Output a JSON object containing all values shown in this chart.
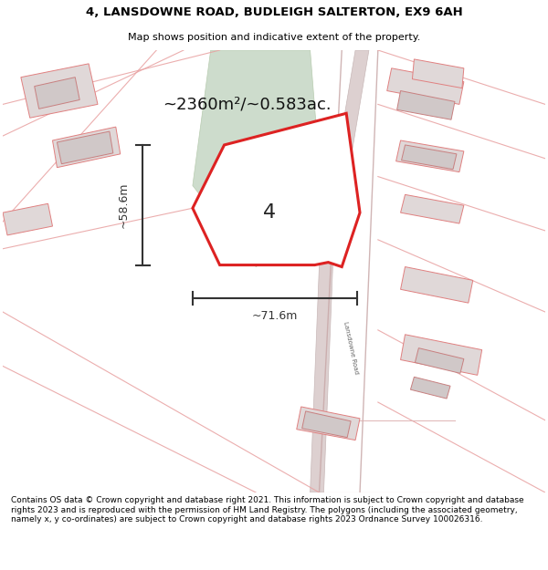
{
  "title_line1": "4, LANSDOWNE ROAD, BUDLEIGH SALTERTON, EX9 6AH",
  "title_line2": "Map shows position and indicative extent of the property.",
  "area_text": "~2360m²/~0.583ac.",
  "label_4": "4",
  "dim_height": "~58.6m",
  "dim_width": "~71.6m",
  "road_label": "Lansdowne Road",
  "footer_text": "Contains OS data © Crown copyright and database right 2021. This information is subject to Crown copyright and database rights 2023 and is reproduced with the permission of HM Land Registry. The polygons (including the associated geometry, namely x, y co-ordinates) are subject to Crown copyright and database rights 2023 Ordnance Survey 100026316.",
  "bg_color": "#ffffff",
  "map_bg": "#f8f5f5",
  "plot_fill": "#ffffff",
  "plot_edge": "#dd2222",
  "road_color": "#c8b8b8",
  "road_edge": "#b8a8a8",
  "building_fill": "#e0d8d8",
  "building_edge": "#e08080",
  "green_fill": "#cddccc",
  "green_edge": "#b8ccb0",
  "dim_color": "#333333",
  "title_color": "#000000",
  "footer_color": "#000000",
  "road_line_color": "#e8a0a0",
  "map_line_color": "#e8a0a0",
  "inner_building_fill": "#d8d0d0"
}
